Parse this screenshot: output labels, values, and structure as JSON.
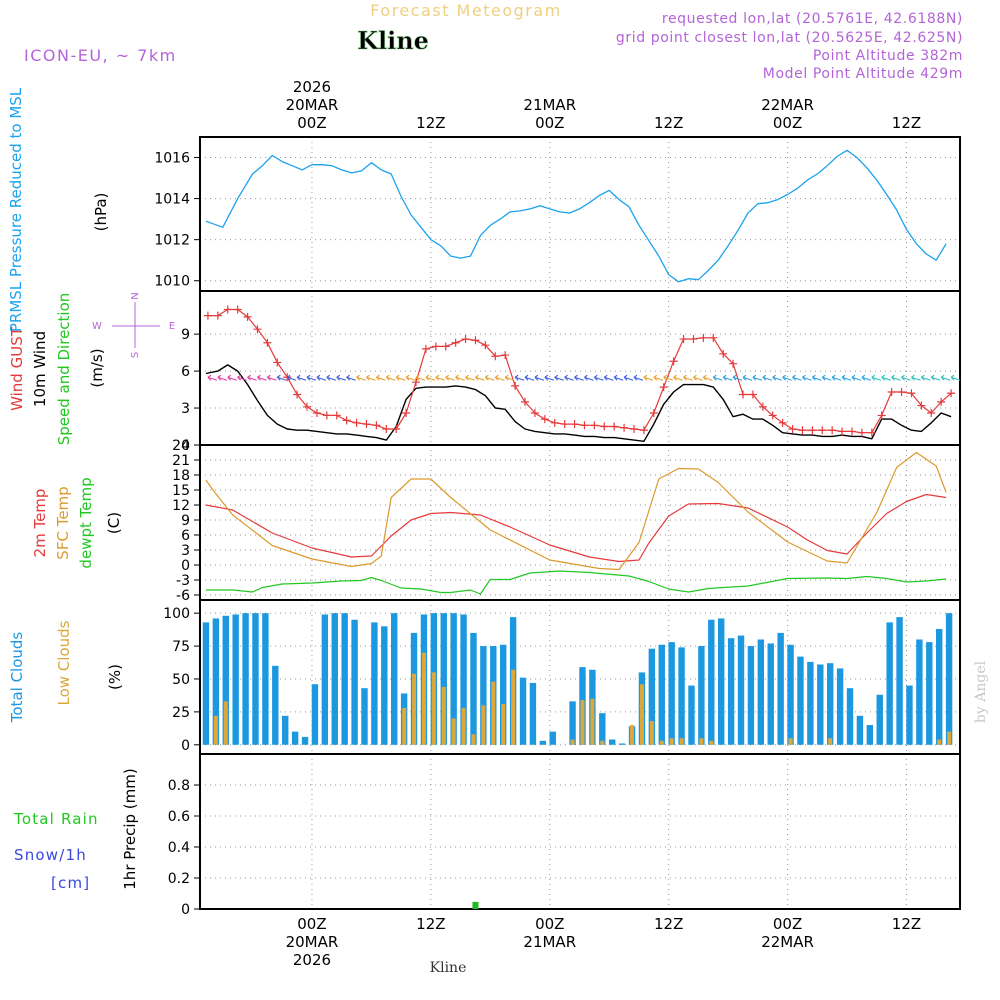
{
  "header": {
    "product": "Forecast Meteogram",
    "model": "ICON-EU, ~ 7km",
    "station": "Kline",
    "requested": "requested lon,lat (20.5761E, 42.6188N)",
    "closest": "grid point closest lon,lat (20.5625E, 42.625N)",
    "point_alt": "Point Altitude 382m",
    "model_alt": "Model Point Altitude 429m",
    "credit": "by Angel",
    "footer_station": "Kline"
  },
  "time_axis": {
    "top_labels": [
      {
        "t": 0,
        "lines": [
          "2026",
          "20MAR",
          "00Z"
        ]
      },
      {
        "t": 12,
        "lines": [
          "12Z"
        ]
      },
      {
        "t": 24,
        "lines": [
          "21MAR",
          "00Z"
        ]
      },
      {
        "t": 36,
        "lines": [
          "12Z"
        ]
      },
      {
        "t": 48,
        "lines": [
          "22MAR",
          "00Z"
        ]
      },
      {
        "t": 60,
        "lines": [
          "12Z"
        ]
      }
    ],
    "bottom_labels": [
      {
        "t": 0,
        "lines": [
          "00Z",
          "20MAR",
          "2026"
        ]
      },
      {
        "t": 12,
        "lines": [
          "12Z"
        ]
      },
      {
        "t": 24,
        "lines": [
          "00Z",
          "21MAR"
        ]
      },
      {
        "t": 36,
        "lines": [
          "12Z"
        ]
      },
      {
        "t": 48,
        "lines": [
          "00Z",
          "22MAR"
        ]
      },
      {
        "t": 60,
        "lines": [
          "12Z"
        ]
      }
    ],
    "range": [
      -11.3,
      65.4
    ]
  },
  "chart_data": [
    {
      "type": "line",
      "title": "PRMSL Pressure Reduced to MSL",
      "ylabel": "(hPa)",
      "ylim": [
        1009.5,
        1017.0
      ],
      "yticks": [
        1010,
        1012,
        1014,
        1016
      ],
      "series": [
        {
          "name": "PRMSL Pressure Reduced to MSL",
          "color": "#1aa3ee",
          "x": [
            -10.7,
            -9,
            -7.5,
            -6,
            -5,
            -4,
            -3,
            -2,
            -1,
            0,
            1,
            2,
            3,
            4,
            5,
            6,
            7,
            8,
            9,
            10,
            11,
            12,
            13,
            14,
            15,
            16,
            17,
            18,
            19,
            20,
            21,
            22,
            23,
            24,
            25,
            26,
            27,
            28,
            29,
            30,
            31,
            32,
            33,
            34,
            35,
            36,
            37,
            38,
            39,
            40,
            41,
            42,
            43,
            44,
            45,
            46,
            47,
            48,
            49,
            50,
            51,
            52,
            53,
            54,
            55,
            56,
            57,
            58,
            59,
            60,
            61,
            62,
            63,
            64
          ],
          "values": [
            1012.9,
            1012.6,
            1014.0,
            1015.2,
            1015.6,
            1016.1,
            1015.8,
            1015.6,
            1015.4,
            1015.65,
            1015.65,
            1015.6,
            1015.4,
            1015.25,
            1015.35,
            1015.75,
            1015.4,
            1015.2,
            1014.1,
            1013.2,
            1012.6,
            1012.0,
            1011.7,
            1011.2,
            1011.1,
            1011.2,
            1012.2,
            1012.7,
            1013.0,
            1013.35,
            1013.4,
            1013.5,
            1013.65,
            1013.5,
            1013.35,
            1013.3,
            1013.5,
            1013.8,
            1014.15,
            1014.4,
            1013.95,
            1013.6,
            1012.7,
            1011.95,
            1011.2,
            1010.3,
            1009.95,
            1010.1,
            1010.05,
            1010.5,
            1011.0,
            1011.7,
            1012.45,
            1013.3,
            1013.75,
            1013.8,
            1013.95,
            1014.2,
            1014.5,
            1014.9,
            1015.2,
            1015.6,
            1016.05,
            1016.35,
            1016.0,
            1015.5,
            1014.9,
            1014.2,
            1013.45,
            1012.5,
            1011.8,
            1011.3,
            1011.0,
            1011.8
          ]
        }
      ]
    },
    {
      "type": "line",
      "title": "Wind GUST, 10m Wind Speed and Direction",
      "ylabel": "(m/s)",
      "ylim": [
        0,
        12.5
      ],
      "yticks": [
        0,
        3,
        6,
        9
      ],
      "compass": [
        "N",
        "W",
        "E",
        "S"
      ],
      "series": [
        {
          "name": "Wind GUST",
          "color": "#e63a3a",
          "marker": "+",
          "x": [
            -10.5,
            -9.5,
            -8.5,
            -7.5,
            -6.5,
            -5.5,
            -4.5,
            -3.5,
            -2.5,
            -1.5,
            -0.5,
            0.5,
            1.5,
            2.5,
            3.5,
            4.5,
            5.5,
            6.5,
            7.5,
            8.5,
            9.5,
            10.5,
            11.5,
            12.5,
            13.5,
            14.5,
            15.5,
            16.5,
            17.5,
            18.5,
            19.5,
            20.5,
            21.5,
            22.5,
            23.5,
            24.5,
            25.5,
            26.5,
            27.5,
            28.5,
            29.5,
            30.5,
            31.5,
            32.5,
            33.5,
            34.5,
            35.5,
            36.5,
            37.5,
            38.5,
            39.5,
            40.5,
            41.5,
            42.5,
            43.5,
            44.5,
            45.5,
            46.5,
            47.5,
            48.5,
            49.5,
            50.5,
            51.5,
            52.5,
            53.5,
            54.5,
            55.5,
            56.5,
            57.5,
            58.5,
            59.5,
            60.5,
            61.5,
            62.5,
            63.5,
            64.5
          ],
          "values": [
            10.5,
            10.5,
            11.0,
            11.0,
            10.4,
            9.4,
            8.3,
            6.7,
            5.5,
            4.1,
            3.1,
            2.6,
            2.4,
            2.4,
            2.0,
            1.8,
            1.7,
            1.6,
            1.3,
            1.3,
            2.6,
            5.1,
            7.8,
            8.0,
            8.0,
            8.3,
            8.6,
            8.5,
            8.1,
            7.2,
            7.3,
            4.8,
            3.5,
            2.6,
            2.1,
            1.8,
            1.7,
            1.7,
            1.6,
            1.6,
            1.5,
            1.5,
            1.4,
            1.3,
            1.2,
            2.6,
            4.7,
            6.8,
            8.6,
            8.6,
            8.7,
            8.7,
            7.4,
            6.6,
            4.1,
            4.1,
            3.1,
            2.4,
            1.8,
            1.3,
            1.2,
            1.2,
            1.2,
            1.2,
            1.1,
            1.1,
            1.0,
            1.0,
            2.4,
            4.3,
            4.3,
            4.2,
            3.2,
            2.6,
            3.5,
            4.2
          ]
        },
        {
          "name": "10m Wind",
          "color": "#000000",
          "x": [
            -10.7,
            -9.5,
            -8.5,
            -7.5,
            -6.5,
            -5.5,
            -4.5,
            -3.5,
            -2.5,
            -1.5,
            -0.5,
            0.5,
            1.5,
            2.5,
            3.5,
            4.5,
            5.5,
            6.5,
            7.5,
            8.5,
            9.5,
            10.5,
            11.5,
            12.5,
            13.5,
            14.5,
            15.5,
            16.5,
            17.5,
            18.5,
            19.5,
            20.5,
            21.5,
            22.5,
            23.5,
            24.5,
            25.5,
            26.5,
            27.5,
            28.5,
            29.5,
            30.5,
            31.5,
            32.5,
            33.5,
            34.5,
            35.5,
            36.5,
            37.5,
            38.5,
            39.5,
            40.5,
            41.5,
            42.5,
            43.5,
            44.5,
            45.5,
            46.5,
            47.5,
            48.5,
            49.5,
            50.5,
            51.5,
            52.5,
            53.5,
            54.5,
            55.5,
            56.5,
            57.5,
            58.5,
            59.5,
            60.5,
            61.5,
            62.5,
            63.5,
            64.5
          ],
          "values": [
            5.8,
            6.0,
            6.5,
            6.0,
            4.9,
            3.6,
            2.4,
            1.7,
            1.3,
            1.2,
            1.2,
            1.1,
            1.0,
            0.9,
            0.9,
            0.8,
            0.7,
            0.6,
            0.4,
            1.5,
            3.7,
            4.6,
            4.7,
            4.7,
            4.7,
            4.8,
            4.7,
            4.5,
            4.0,
            3.0,
            2.9,
            1.9,
            1.3,
            1.1,
            1.0,
            0.9,
            0.9,
            0.8,
            0.7,
            0.7,
            0.6,
            0.6,
            0.5,
            0.4,
            0.3,
            1.7,
            3.3,
            4.3,
            4.9,
            4.9,
            4.9,
            4.7,
            3.7,
            2.3,
            2.5,
            2.1,
            2.1,
            1.6,
            1.0,
            0.9,
            0.8,
            0.8,
            0.7,
            0.7,
            0.8,
            0.7,
            0.7,
            0.5,
            2.1,
            2.1,
            1.6,
            1.2,
            1.1,
            1.8,
            2.6,
            2.3
          ]
        }
      ]
    },
    {
      "type": "line",
      "title": "2m Temp, SFC Temp, dewpt Temp",
      "ylabel": "(C)",
      "ylim": [
        -7,
        24
      ],
      "yticks": [
        -6,
        -3,
        0,
        3,
        6,
        9,
        12,
        15,
        18,
        21,
        24
      ],
      "series": [
        {
          "name": "2m Temp",
          "color": "#e63a3a",
          "x": [
            -10.7,
            -8,
            -4,
            0,
            4,
            6,
            8,
            10,
            12,
            14,
            17,
            20,
            24,
            28,
            31,
            33,
            34,
            36,
            38,
            41,
            44,
            48,
            50,
            52,
            54,
            56,
            58,
            60,
            62,
            64
          ],
          "values": [
            12,
            11,
            6.4,
            3.4,
            1.6,
            1.8,
            5.8,
            9.0,
            10.3,
            10.5,
            10.0,
            7.6,
            4.0,
            1.6,
            0.7,
            1.0,
            4.4,
            9.8,
            12.2,
            12.3,
            11.4,
            7.6,
            5.0,
            2.9,
            2.2,
            6.4,
            10.3,
            12.7,
            14.1,
            13.5
          ]
        },
        {
          "name": "SFC Temp",
          "color": "#dc9a2c",
          "x": [
            -10.7,
            -10,
            -8,
            -4,
            0,
            4,
            6,
            7,
            8,
            10,
            12,
            14,
            18,
            24,
            29,
            31,
            33,
            35,
            37,
            39,
            41,
            44,
            48,
            52,
            54,
            57,
            59,
            61,
            63,
            64
          ],
          "values": [
            17,
            15,
            10,
            3.9,
            1.2,
            -0.3,
            0.3,
            1.8,
            13.5,
            17.2,
            17.2,
            13.5,
            7.0,
            1.0,
            -0.7,
            -0.9,
            4.5,
            17.2,
            19.3,
            19.2,
            16.5,
            10.6,
            4.6,
            0.8,
            0.4,
            10.5,
            19.5,
            22.5,
            19.8,
            14.5
          ]
        },
        {
          "name": "dewpt Temp",
          "color": "#22c722",
          "x": [
            -10.7,
            -8,
            -6,
            -5,
            -3,
            0,
            3,
            5,
            6,
            7,
            9,
            11,
            13,
            14,
            16,
            17,
            18,
            20,
            22,
            25,
            28,
            32,
            34,
            36,
            38,
            40,
            44,
            48,
            52,
            54,
            56,
            58,
            60,
            62,
            64
          ],
          "values": [
            -5,
            -5,
            -5.4,
            -4.5,
            -3.8,
            -3.6,
            -3.2,
            -3.1,
            -2.5,
            -3.1,
            -4.6,
            -4.8,
            -5.5,
            -5.5,
            -5.0,
            -5.8,
            -2.9,
            -2.9,
            -1.6,
            -1.2,
            -1.5,
            -2.2,
            -3.3,
            -4.8,
            -5.4,
            -4.7,
            -4.2,
            -2.7,
            -2.6,
            -2.7,
            -2.3,
            -2.7,
            -3.4,
            -3.2,
            -2.8
          ]
        }
      ]
    },
    {
      "type": "bar",
      "title": "Total Clouds, Low Clouds",
      "ylabel": "(%)",
      "ylim": [
        -7,
        110
      ],
      "yticks": [
        0,
        25,
        50,
        75,
        100
      ],
      "x": [
        -10.7,
        -9.7,
        -8.7,
        -7.7,
        -6.7,
        -5.7,
        -4.7,
        -3.7,
        -2.7,
        -1.7,
        -0.7,
        0.3,
        1.3,
        2.3,
        3.3,
        4.3,
        5.3,
        6.3,
        7.3,
        8.3,
        9.3,
        10.3,
        11.3,
        12.3,
        13.3,
        14.3,
        15.3,
        16.3,
        17.3,
        18.3,
        19.3,
        20.3,
        21.3,
        22.3,
        23.3,
        24.3,
        25.3,
        26.3,
        27.3,
        28.3,
        29.3,
        30.3,
        31.3,
        32.3,
        33.3,
        34.3,
        35.3,
        36.3,
        37.3,
        38.3,
        39.3,
        40.3,
        41.3,
        42.3,
        43.3,
        44.3,
        45.3,
        46.3,
        47.3,
        48.3,
        49.3,
        50.3,
        51.3,
        52.3,
        53.3,
        54.3,
        55.3,
        56.3,
        57.3,
        58.3,
        59.3,
        60.3,
        61.3,
        62.3,
        63.3,
        64.3
      ],
      "series": [
        {
          "name": "Total Clouds",
          "color": "#1b98e0",
          "values": [
            93,
            96,
            98,
            99,
            100,
            100,
            100,
            60,
            22,
            10,
            6,
            46,
            99,
            100,
            100,
            95,
            43,
            93,
            90,
            100,
            39,
            85,
            99,
            100,
            100,
            100,
            99,
            85,
            75,
            75,
            76,
            97,
            51,
            47,
            3,
            10,
            0,
            33,
            59,
            57,
            24,
            4,
            1,
            14,
            55,
            73,
            76,
            78,
            74,
            45,
            75,
            95,
            96,
            81,
            83,
            75,
            80,
            77,
            85,
            76,
            67,
            63,
            61,
            62,
            58,
            43,
            22,
            15,
            38,
            93,
            97,
            45,
            80,
            78,
            88,
            100
          ]
        },
        {
          "name": "Low Clouds",
          "color": "#dca83c",
          "values": [
            0,
            22,
            33,
            0,
            0,
            0,
            0,
            0,
            0,
            0,
            0,
            0,
            0,
            0,
            0,
            0,
            0,
            0,
            0,
            0,
            28,
            54,
            70,
            55,
            44,
            20,
            28,
            8,
            30,
            48,
            31,
            57,
            0,
            0,
            0,
            0,
            0,
            4,
            34,
            35,
            3,
            0,
            0,
            15,
            46,
            18,
            3,
            5,
            5,
            0,
            5,
            3,
            0,
            0,
            0,
            0,
            0,
            0,
            0,
            5,
            0,
            0,
            0,
            5,
            0,
            0,
            0,
            0,
            0,
            0,
            0,
            0,
            0,
            0,
            4,
            10
          ]
        }
      ]
    },
    {
      "type": "bar",
      "title": "1hr Precip (mm)",
      "ylabel": "1hr Precip (mm)",
      "ylim": [
        0,
        1.0
      ],
      "yticks": [
        0,
        0.2,
        0.4,
        0.6,
        0.8
      ],
      "legend": {
        "rain": "Total Rain",
        "snow": "Snow/1h",
        "snow_unit": "[cm]"
      },
      "series": [
        {
          "name": "Total Rain",
          "color": "#22b822",
          "x": [
            16.5
          ],
          "values": [
            0.02
          ]
        }
      ]
    }
  ]
}
